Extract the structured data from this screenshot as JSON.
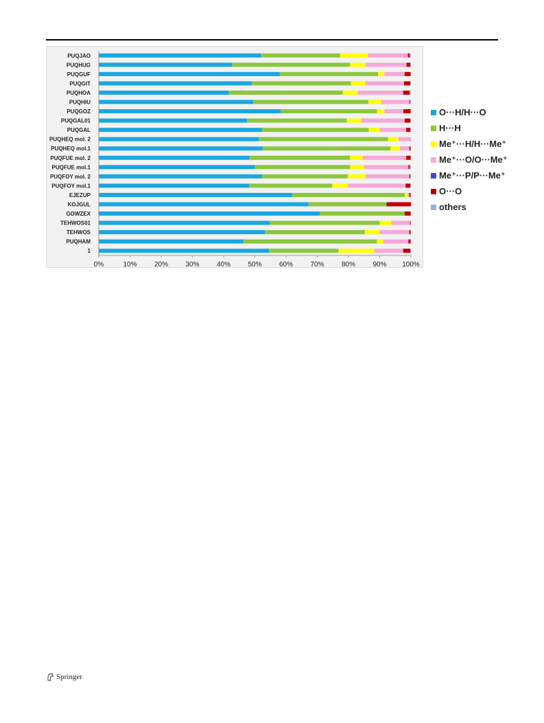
{
  "publisher": {
    "name": "Springer"
  },
  "chart_data": {
    "type": "bar",
    "orientation": "horizontal",
    "stacked": "percent",
    "categories": [
      "PUQJAO",
      "PUQHUG",
      "PUQGUF",
      "PUQGIT",
      "PUQHOA",
      "PUQHIU",
      "PUQGOZ",
      "PUQGAL01",
      "PUQGAL",
      "PUQHEQ mol. 2",
      "PUQHEQ mol.1",
      "PUQFUE mol. 2",
      "PUQFUE mol.1",
      "PUQFOY mol. 2",
      "PUQFOY mol.1",
      "EJEZUP",
      "KOJGUL",
      "GOWZEX",
      "TEHWOS01",
      "TEHWOS",
      "PUQHAM",
      "1"
    ],
    "x_ticks": [
      "0%",
      "10%",
      "20%",
      "30%",
      "40%",
      "50%",
      "60%",
      "70%",
      "80%",
      "90%",
      "100%"
    ],
    "xlim": [
      0,
      100
    ],
    "grid": false,
    "legend_position": "right",
    "series": [
      {
        "name": "O···H/H···O",
        "color": "#1aa7e0",
        "values": [
          52,
          42.7,
          58,
          49,
          41.7,
          49.5,
          58.3,
          47.5,
          52.2,
          51.3,
          52.5,
          48.3,
          50,
          52.3,
          48.3,
          62,
          67.2,
          70.8,
          54.8,
          53.2,
          46.3,
          54.5
        ]
      },
      {
        "name": "H···H",
        "color": "#8dc63f",
        "values": [
          25.3,
          37.8,
          31.5,
          31.8,
          36.5,
          36.9,
          30.8,
          32,
          34.3,
          41.4,
          40.9,
          32.2,
          30.5,
          27.5,
          26.5,
          36,
          25,
          27.2,
          35.2,
          32,
          42.8,
          22.3
        ]
      },
      {
        "name": "Me⁺···H/H···Me⁺",
        "color": "#ffff00",
        "values": [
          9,
          5,
          2,
          4.5,
          4.8,
          4.1,
          2.5,
          4.5,
          3.5,
          3.3,
          3.1,
          4,
          4.5,
          5.7,
          5,
          1,
          0,
          0,
          3.7,
          4.8,
          2,
          11.5
        ]
      },
      {
        "name": "Me⁺···O/O···Me⁺",
        "color": "#f7a8d8",
        "values": [
          12.7,
          13.1,
          6.5,
          12.5,
          14.5,
          9,
          6,
          14,
          8.5,
          4,
          3,
          14,
          14.2,
          14,
          18.5,
          0.5,
          0,
          0,
          6,
          9.5,
          8.1,
          9.2
        ]
      },
      {
        "name": "Me⁺···P/P···Me⁺",
        "color": "#3f48cc",
        "values": [
          0,
          0,
          0,
          0,
          0,
          0,
          0,
          0,
          0,
          0,
          0,
          0,
          0,
          0,
          0,
          0,
          0,
          0,
          0,
          0,
          0,
          0
        ]
      },
      {
        "name": "O···O",
        "color": "#c00000",
        "values": [
          0.6,
          1.2,
          1.9,
          2,
          2.1,
          0.2,
          2.3,
          1.8,
          1.3,
          0,
          0.4,
          1.4,
          0.4,
          0.3,
          1.5,
          0.4,
          7.8,
          1.9,
          0.2,
          0.4,
          0.7,
          2.3
        ]
      },
      {
        "name": "others",
        "color": "#95b3d7",
        "values": [
          0.4,
          0.2,
          0.1,
          0.2,
          0.4,
          0.3,
          0.1,
          0.2,
          0.2,
          0,
          0.1,
          0.1,
          0.4,
          0.2,
          0.2,
          0.1,
          0,
          0.1,
          0.1,
          0.1,
          0.1,
          0.2
        ]
      }
    ]
  }
}
